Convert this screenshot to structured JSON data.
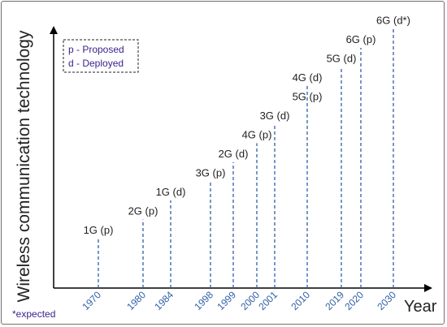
{
  "chart_data": {
    "type": "scatter",
    "ylabel": "Wireless communication technology",
    "xlabel": "Year",
    "footnote": "*expected",
    "legend": {
      "placement": "top-left",
      "entries": [
        "p - Proposed",
        "d - Deployed"
      ]
    },
    "x_ticks": [
      "1970",
      "1980",
      "1984",
      "1998",
      "1999",
      "2000",
      "2001",
      "2010",
      "2019",
      "2020",
      "2030"
    ],
    "points": [
      {
        "year": "1970",
        "label": "1G (p)",
        "level": 1
      },
      {
        "year": "1980",
        "label": "2G (p)",
        "level": 2
      },
      {
        "year": "1984",
        "label": "1G (d)",
        "level": 3
      },
      {
        "year": "1998",
        "label": "3G (p)",
        "level": 4
      },
      {
        "year": "1999",
        "label": "2G (d)",
        "level": 5
      },
      {
        "year": "2000",
        "label": "4G (p)",
        "level": 6
      },
      {
        "year": "2001",
        "label": "3G (d)",
        "level": 7
      },
      {
        "year": "2010",
        "label": "5G (p)",
        "level": 8
      },
      {
        "year": "2010",
        "label": "4G (d)",
        "level": 9
      },
      {
        "year": "2019",
        "label": "5G (d)",
        "level": 10
      },
      {
        "year": "2020",
        "label": "6G (p)",
        "level": 11
      },
      {
        "year": "2030",
        "label": "6G (d*)",
        "level": 12
      }
    ],
    "colors": {
      "axis": "#000000",
      "stem": "#2f5fa8",
      "year_label": "#2f5fa8",
      "legend_text": "#3a1f8a",
      "footnote": "#3a1f8a"
    }
  }
}
